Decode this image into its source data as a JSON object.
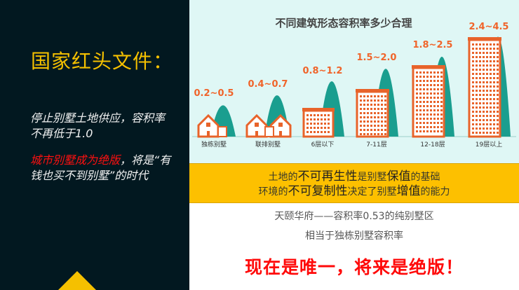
{
  "left": {
    "heading": "国家红头文件：",
    "para1": "停止别墅土地供应，容积率不再低于1.0",
    "para2_red": "城市别墅成为绝版",
    "para2_rest": "，将是“有钱也买不到别墅”的时代"
  },
  "infographic": {
    "title": "不同建筑形态容积率多少合理",
    "items": [
      {
        "label": "独栋别墅",
        "range": "0.2~0.5",
        "type": "house"
      },
      {
        "label": "联排别墅",
        "range": "0.4~0.7",
        "type": "townhouse"
      },
      {
        "label": "6层以下",
        "range": "0.8~1.2",
        "type": "building"
      },
      {
        "label": "7-11层",
        "range": "1.5~2.0",
        "type": "building"
      },
      {
        "label": "12-18层",
        "range": "1.8~2.5",
        "type": "building"
      },
      {
        "label": "19层以上",
        "range": "2.4~4.5",
        "type": "building"
      }
    ],
    "colors": {
      "orange": "#e8632a",
      "teal": "#1a9e8f",
      "label_orange": "#f0642a"
    }
  },
  "band": {
    "line1": [
      "土地的",
      "不可再生性",
      "是别墅",
      "保值",
      "的基础"
    ],
    "line2": [
      "环境的",
      "不可复制性",
      "决定了别墅",
      "增值",
      "的能力"
    ]
  },
  "notes": {
    "line1": "天颐华府——容积率0.53的纯别墅区",
    "line2": "相当于独栋别墅容积率"
  },
  "slogan": "现在是唯一，将来是绝版！"
}
